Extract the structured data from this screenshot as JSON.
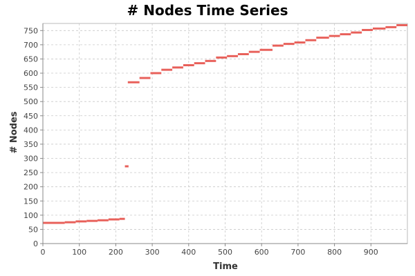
{
  "chart_data": {
    "type": "scatter",
    "title": "# Nodes Time Series",
    "xlabel": "Time",
    "ylabel": "# Nodes",
    "xlim": [
      0,
      1000
    ],
    "ylim": [
      0,
      775
    ],
    "x_ticks": [
      0,
      100,
      200,
      300,
      400,
      500,
      600,
      700,
      800,
      900
    ],
    "y_ticks": [
      0,
      50,
      100,
      150,
      200,
      250,
      300,
      350,
      400,
      450,
      500,
      550,
      600,
      650,
      700,
      750
    ],
    "grid": true,
    "legend": "none",
    "colors": {
      "series": "#e8605a",
      "grid": "#c8c8c8",
      "axis": "#888888",
      "background": "#ffffff"
    },
    "series": [
      {
        "name": "# Nodes",
        "segments": [
          {
            "x0": 0,
            "x1": 60,
            "y": 73
          },
          {
            "x0": 60,
            "x1": 90,
            "y": 75
          },
          {
            "x0": 90,
            "x1": 120,
            "y": 78
          },
          {
            "x0": 120,
            "x1": 150,
            "y": 80
          },
          {
            "x0": 150,
            "x1": 180,
            "y": 82
          },
          {
            "x0": 180,
            "x1": 210,
            "y": 85
          },
          {
            "x0": 210,
            "x1": 225,
            "y": 87
          },
          {
            "x0": 225,
            "x1": 235,
            "y": 272
          },
          {
            "x0": 233,
            "x1": 265,
            "y": 568
          },
          {
            "x0": 265,
            "x1": 295,
            "y": 583
          },
          {
            "x0": 295,
            "x1": 325,
            "y": 600
          },
          {
            "x0": 325,
            "x1": 355,
            "y": 612
          },
          {
            "x0": 355,
            "x1": 385,
            "y": 620
          },
          {
            "x0": 385,
            "x1": 415,
            "y": 628
          },
          {
            "x0": 415,
            "x1": 445,
            "y": 635
          },
          {
            "x0": 445,
            "x1": 475,
            "y": 643
          },
          {
            "x0": 475,
            "x1": 505,
            "y": 655
          },
          {
            "x0": 505,
            "x1": 535,
            "y": 660
          },
          {
            "x0": 535,
            "x1": 565,
            "y": 667
          },
          {
            "x0": 565,
            "x1": 595,
            "y": 675
          },
          {
            "x0": 595,
            "x1": 630,
            "y": 682
          },
          {
            "x0": 630,
            "x1": 660,
            "y": 697
          },
          {
            "x0": 660,
            "x1": 690,
            "y": 703
          },
          {
            "x0": 690,
            "x1": 720,
            "y": 708
          },
          {
            "x0": 720,
            "x1": 750,
            "y": 716
          },
          {
            "x0": 750,
            "x1": 785,
            "y": 725
          },
          {
            "x0": 785,
            "x1": 815,
            "y": 731
          },
          {
            "x0": 815,
            "x1": 845,
            "y": 737
          },
          {
            "x0": 845,
            "x1": 875,
            "y": 743
          },
          {
            "x0": 875,
            "x1": 905,
            "y": 752
          },
          {
            "x0": 905,
            "x1": 940,
            "y": 757
          },
          {
            "x0": 940,
            "x1": 970,
            "y": 762
          },
          {
            "x0": 970,
            "x1": 1000,
            "y": 769
          }
        ]
      }
    ]
  }
}
